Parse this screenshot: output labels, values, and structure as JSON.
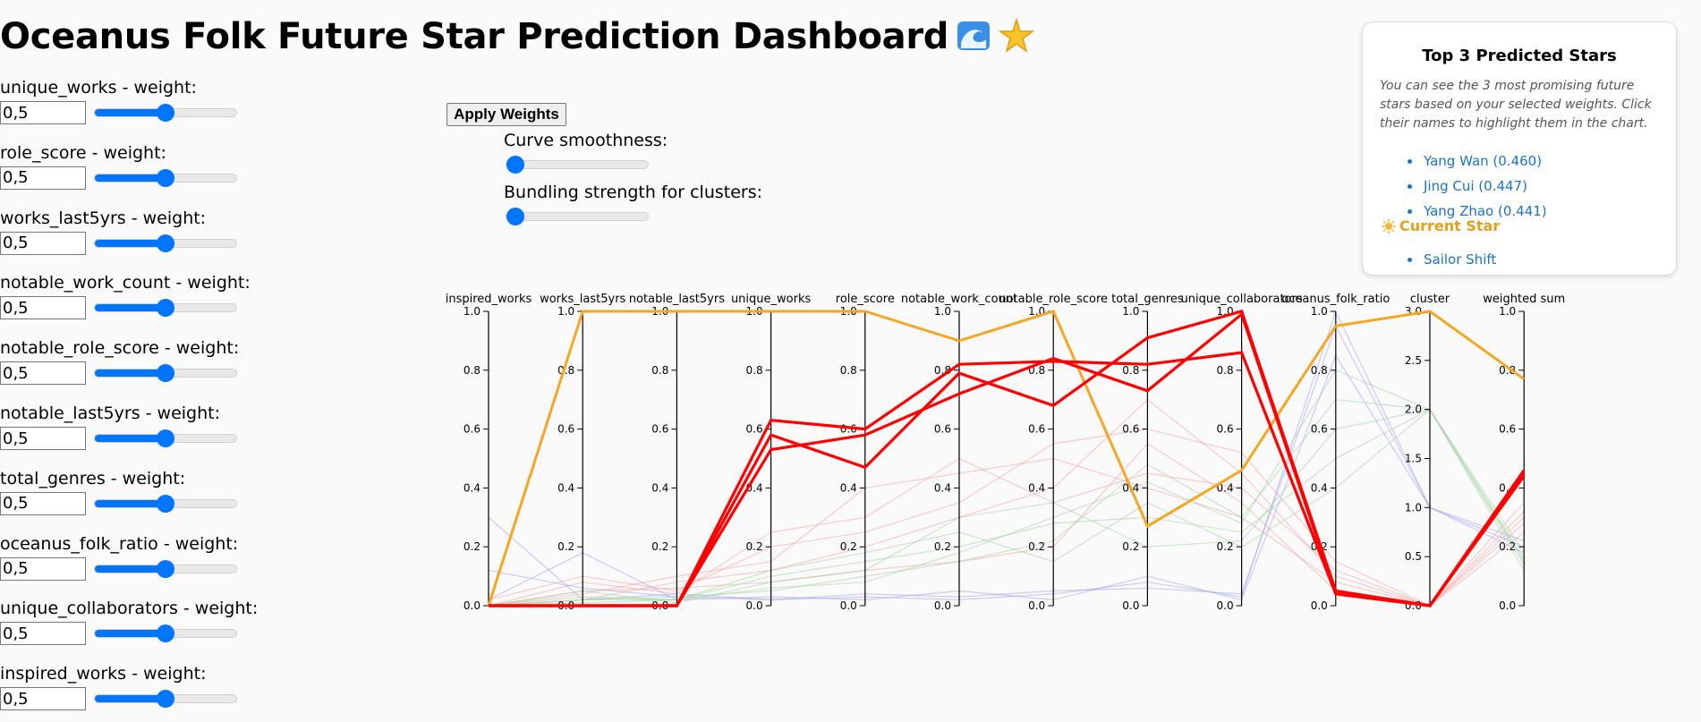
{
  "title": "Oceanus Folk Future Star Prediction Dashboard",
  "weights": [
    {
      "label": "unique_works - weight:",
      "value": "0,5",
      "level": 0.5
    },
    {
      "label": "role_score - weight:",
      "value": "0,5",
      "level": 0.5
    },
    {
      "label": "works_last5yrs - weight:",
      "value": "0,5",
      "level": 0.5
    },
    {
      "label": "notable_work_count - weight:",
      "value": "0,5",
      "level": 0.5
    },
    {
      "label": "notable_role_score - weight:",
      "value": "0,5",
      "level": 0.5
    },
    {
      "label": "notable_last5yrs - weight:",
      "value": "0,5",
      "level": 0.5
    },
    {
      "label": "total_genres - weight:",
      "value": "0,5",
      "level": 0.5
    },
    {
      "label": "oceanus_folk_ratio - weight:",
      "value": "0,5",
      "level": 0.5
    },
    {
      "label": "unique_collaborators - weight:",
      "value": "0,5",
      "level": 0.5
    },
    {
      "label": "inspired_works - weight:",
      "value": "0,5",
      "level": 0.5
    }
  ],
  "controls": {
    "apply_label": "Apply Weights",
    "smoothness_label": "Curve smoothness:",
    "smoothness_level": 0,
    "bundling_label": "Bundling strength for clusters:",
    "bundling_level": 0
  },
  "panel": {
    "title": "Top 3 Predicted Stars",
    "description": "You can see the 3 most promising future stars based on your selected weights. Click their names to highlight them in the chart.",
    "top_stars": [
      "Yang Wan (0.460)",
      "Jing Cui (0.447)",
      "Yang Zhao (0.441)"
    ],
    "current_star_label": "Current Star",
    "current_stars": [
      "Sailor Shift"
    ]
  },
  "colors": {
    "highlight": "#ff0000",
    "current": "#f5a623",
    "cluster0": "#f4a3a3",
    "cluster1": "#a3a3f4",
    "cluster2": "#a3d4a3",
    "slider": "#0075ff"
  },
  "chart_data": {
    "type": "parallel_coordinates",
    "axes": [
      {
        "name": "inspired_works",
        "ticks": [
          "0.0",
          "0.2",
          "0.4",
          "0.6",
          "0.8",
          "1.0"
        ],
        "range": [
          0,
          1
        ]
      },
      {
        "name": "works_last5yrs",
        "ticks": [
          "0.0",
          "0.2",
          "0.4",
          "0.6",
          "0.8",
          "1.0"
        ],
        "range": [
          0,
          1
        ]
      },
      {
        "name": "notable_last5yrs",
        "ticks": [
          "0.0",
          "0.2",
          "0.4",
          "0.6",
          "0.8",
          "1.0"
        ],
        "range": [
          0,
          1
        ]
      },
      {
        "name": "unique_works",
        "ticks": [
          "0.0",
          "0.2",
          "0.4",
          "0.6",
          "0.8",
          "1.0"
        ],
        "range": [
          0,
          1
        ]
      },
      {
        "name": "role_score",
        "ticks": [
          "0.0",
          "0.2",
          "0.4",
          "0.6",
          "0.8",
          "1.0"
        ],
        "range": [
          0,
          1
        ]
      },
      {
        "name": "notable_work_count",
        "ticks": [
          "0.0",
          "0.2",
          "0.4",
          "0.6",
          "0.8",
          "1.0"
        ],
        "range": [
          0,
          1
        ]
      },
      {
        "name": "notable_role_score",
        "ticks": [
          "0.0",
          "0.2",
          "0.4",
          "0.6",
          "0.8",
          "1.0"
        ],
        "range": [
          0,
          1
        ]
      },
      {
        "name": "total_genres",
        "ticks": [
          "0.0",
          "0.2",
          "0.4",
          "0.6",
          "0.8",
          "1.0"
        ],
        "range": [
          0,
          1
        ]
      },
      {
        "name": "unique_collaborators",
        "ticks": [
          "0.0",
          "0.2",
          "0.4",
          "0.6",
          "0.8",
          "1.0"
        ],
        "range": [
          0,
          1
        ]
      },
      {
        "name": "oceanus_folk_ratio",
        "ticks": [
          "0.0",
          "0.2",
          "0.4",
          "0.6",
          "0.8",
          "1.0"
        ],
        "range": [
          0,
          1
        ]
      },
      {
        "name": "cluster",
        "ticks": [
          "0.0",
          "0.5",
          "1.0",
          "1.5",
          "2.0",
          "2.5",
          "3.0"
        ],
        "range": [
          0,
          3
        ]
      },
      {
        "name": "weighted sum",
        "ticks": [
          "0.0",
          "0.2",
          "0.4",
          "0.6",
          "0.8",
          "1.0"
        ],
        "range": [
          0,
          1
        ]
      }
    ],
    "highlighted": [
      {
        "name": "Yang Wan",
        "values": [
          0,
          0,
          0,
          0.63,
          0.6,
          0.82,
          0.83,
          0.82,
          0.86,
          0.04,
          0,
          0.46
        ]
      },
      {
        "name": "Jing Cui",
        "values": [
          0,
          0,
          0,
          0.58,
          0.47,
          0.79,
          0.68,
          0.91,
          1.0,
          0.05,
          0,
          0.447
        ]
      },
      {
        "name": "Yang Zhao",
        "values": [
          0,
          0,
          0,
          0.53,
          0.58,
          0.72,
          0.84,
          0.73,
          0.99,
          0.04,
          0,
          0.441
        ]
      }
    ],
    "current": {
      "name": "Sailor Shift",
      "values": [
        0,
        1.0,
        1.0,
        1.0,
        1.0,
        0.9,
        1.0,
        0.27,
        0.46,
        0.95,
        3.0,
        0.77
      ]
    },
    "background": [
      {
        "cluster": 0,
        "values": [
          0,
          0.05,
          0.06,
          0.08,
          0.12,
          0.15,
          0.2,
          0.55,
          0.35,
          0.05,
          0,
          0.25
        ]
      },
      {
        "cluster": 0,
        "values": [
          0,
          0.02,
          0.08,
          0.12,
          0.2,
          0.3,
          0.4,
          0.7,
          0.45,
          0.1,
          0,
          0.3
        ]
      },
      {
        "cluster": 0,
        "values": [
          0.02,
          0.1,
          0.05,
          0.2,
          0.25,
          0.35,
          0.55,
          0.6,
          0.52,
          0.15,
          0,
          0.35
        ]
      },
      {
        "cluster": 0,
        "values": [
          0,
          0.04,
          0.1,
          0.15,
          0.4,
          0.45,
          0.5,
          0.4,
          0.3,
          0.08,
          0,
          0.28
        ]
      },
      {
        "cluster": 0,
        "values": [
          0,
          0.08,
          0.04,
          0.25,
          0.3,
          0.5,
          0.35,
          0.45,
          0.4,
          0.12,
          0,
          0.32
        ]
      },
      {
        "cluster": 1,
        "values": [
          0.12,
          0.06,
          0.03,
          0.02,
          0.03,
          0.02,
          0.04,
          0.08,
          0.03,
          1.0,
          1.0,
          0.22
        ]
      },
      {
        "cluster": 1,
        "values": [
          0.02,
          0.18,
          0.02,
          0.03,
          0.02,
          0.05,
          0.02,
          0.1,
          0.02,
          0.85,
          1.0,
          0.2
        ]
      },
      {
        "cluster": 1,
        "values": [
          0.3,
          0.02,
          0.04,
          0.02,
          0.04,
          0.03,
          0.05,
          0.06,
          0.04,
          0.95,
          1.0,
          0.18
        ]
      },
      {
        "cluster": 2,
        "values": [
          0,
          0.03,
          0.02,
          0.1,
          0.15,
          0.2,
          0.28,
          0.3,
          0.25,
          0.5,
          2.0,
          0.15
        ]
      },
      {
        "cluster": 2,
        "values": [
          0,
          0.02,
          0.03,
          0.05,
          0.1,
          0.15,
          0.22,
          0.48,
          0.3,
          0.7,
          2.0,
          0.18
        ]
      },
      {
        "cluster": 2,
        "values": [
          0,
          0.01,
          0.02,
          0.12,
          0.18,
          0.25,
          0.15,
          0.35,
          0.2,
          0.4,
          2.0,
          0.12
        ]
      },
      {
        "cluster": 2,
        "values": [
          0,
          0.05,
          0.01,
          0.08,
          0.12,
          0.3,
          0.35,
          0.2,
          0.22,
          0.6,
          2.0,
          0.14
        ]
      },
      {
        "cluster": 2,
        "values": [
          0,
          0.02,
          0.02,
          0.06,
          0.08,
          0.18,
          0.3,
          0.42,
          0.28,
          0.8,
          2.0,
          0.16
        ]
      }
    ]
  }
}
